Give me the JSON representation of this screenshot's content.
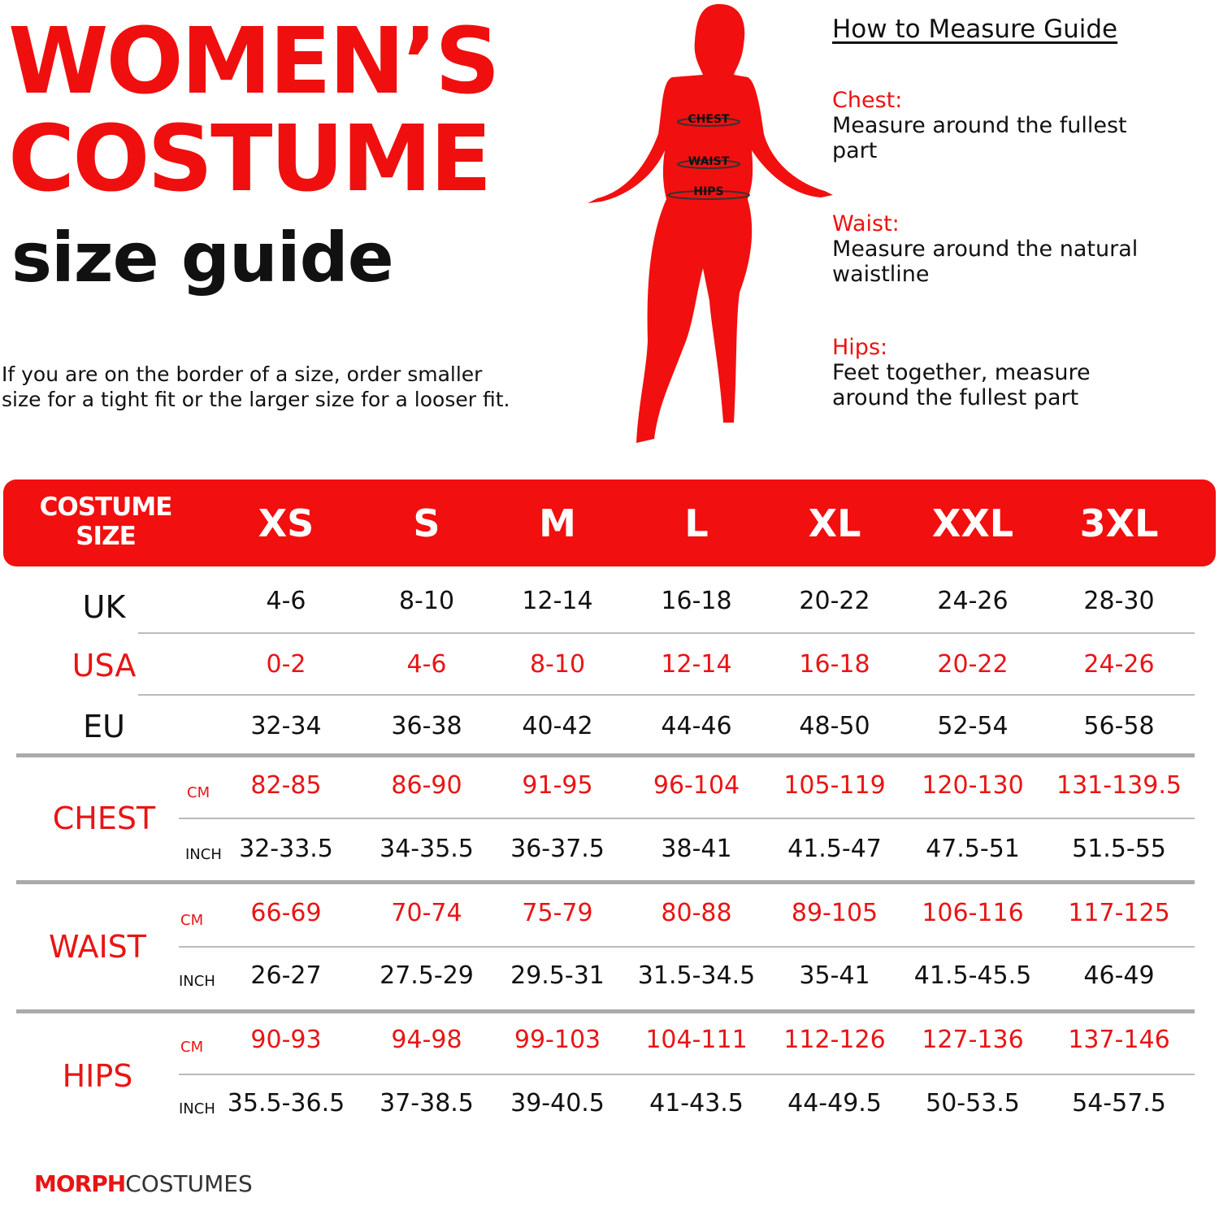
{
  "heading": {
    "line1": "WOMEN’S",
    "line2": "COSTUME",
    "line3": "size guide"
  },
  "note": {
    "line1": "If you are on the border of a size, order smaller",
    "line2": "size for a tight fit or the larger size for a looser fit."
  },
  "figure": {
    "labels": [
      "CHEST",
      "WAIST",
      "HIPS"
    ]
  },
  "guide": {
    "title": "How to Measure Guide",
    "items": [
      {
        "label": "Chest:",
        "line1": "Measure around the fullest",
        "line2": "part"
      },
      {
        "label": "Waist:",
        "line1": "Measure around the natural",
        "line2": "waistline"
      },
      {
        "label": "Hips:",
        "line1": "Feet together, measure",
        "line2": "around the fullest part"
      }
    ]
  },
  "colors": {
    "accent": "#f20f0f",
    "text": "#111111",
    "divider": "#aaaaaa"
  },
  "table": {
    "header_line1": "COSTUME",
    "header_line2": "SIZE",
    "sizes": [
      "XS",
      "S",
      "M",
      "L",
      "XL",
      "XXL",
      "3XL"
    ],
    "rows": [
      {
        "group": "UK",
        "unit": "",
        "red": false,
        "values": [
          "4-6",
          "8-10",
          "12-14",
          "16-18",
          "20-22",
          "24-26",
          "28-30"
        ]
      },
      {
        "group": "USA",
        "unit": "",
        "red": true,
        "values": [
          "0-2",
          "4-6",
          "8-10",
          "12-14",
          "16-18",
          "20-22",
          "24-26"
        ]
      },
      {
        "group": "EU",
        "unit": "",
        "red": false,
        "values": [
          "32-34",
          "36-38",
          "40-42",
          "44-46",
          "48-50",
          "52-54",
          "56-58"
        ]
      },
      {
        "group": "CHEST",
        "unit": "CM",
        "red": true,
        "values": [
          "82-85",
          "86-90",
          "91-95",
          "96-104",
          "105-119",
          "120-130",
          "131-139.5"
        ]
      },
      {
        "group": "",
        "unit": "INCH",
        "red": false,
        "values": [
          "32-33.5",
          "34-35.5",
          "36-37.5",
          "38-41",
          "41.5-47",
          "47.5-51",
          "51.5-55"
        ]
      },
      {
        "group": "WAIST",
        "unit": "CM",
        "red": true,
        "values": [
          "66-69",
          "70-74",
          "75-79",
          "80-88",
          "89-105",
          "106-116",
          "117-125"
        ]
      },
      {
        "group": "",
        "unit": "INCH",
        "red": false,
        "values": [
          "26-27",
          "27.5-29",
          "29.5-31",
          "31.5-34.5",
          "35-41",
          "41.5-45.5",
          "46-49"
        ]
      },
      {
        "group": "HIPS",
        "unit": "CM",
        "red": true,
        "values": [
          "90-93",
          "94-98",
          "99-103",
          "104-111",
          "112-126",
          "127-136",
          "137-146"
        ]
      },
      {
        "group": "",
        "unit": "INCH",
        "red": false,
        "values": [
          "35.5-36.5",
          "37-38.5",
          "39-40.5",
          "41-43.5",
          "44-49.5",
          "50-53.5",
          "54-57.5"
        ]
      }
    ]
  },
  "logo": {
    "part1": "MORPH",
    "part2": "COSTUMES"
  }
}
